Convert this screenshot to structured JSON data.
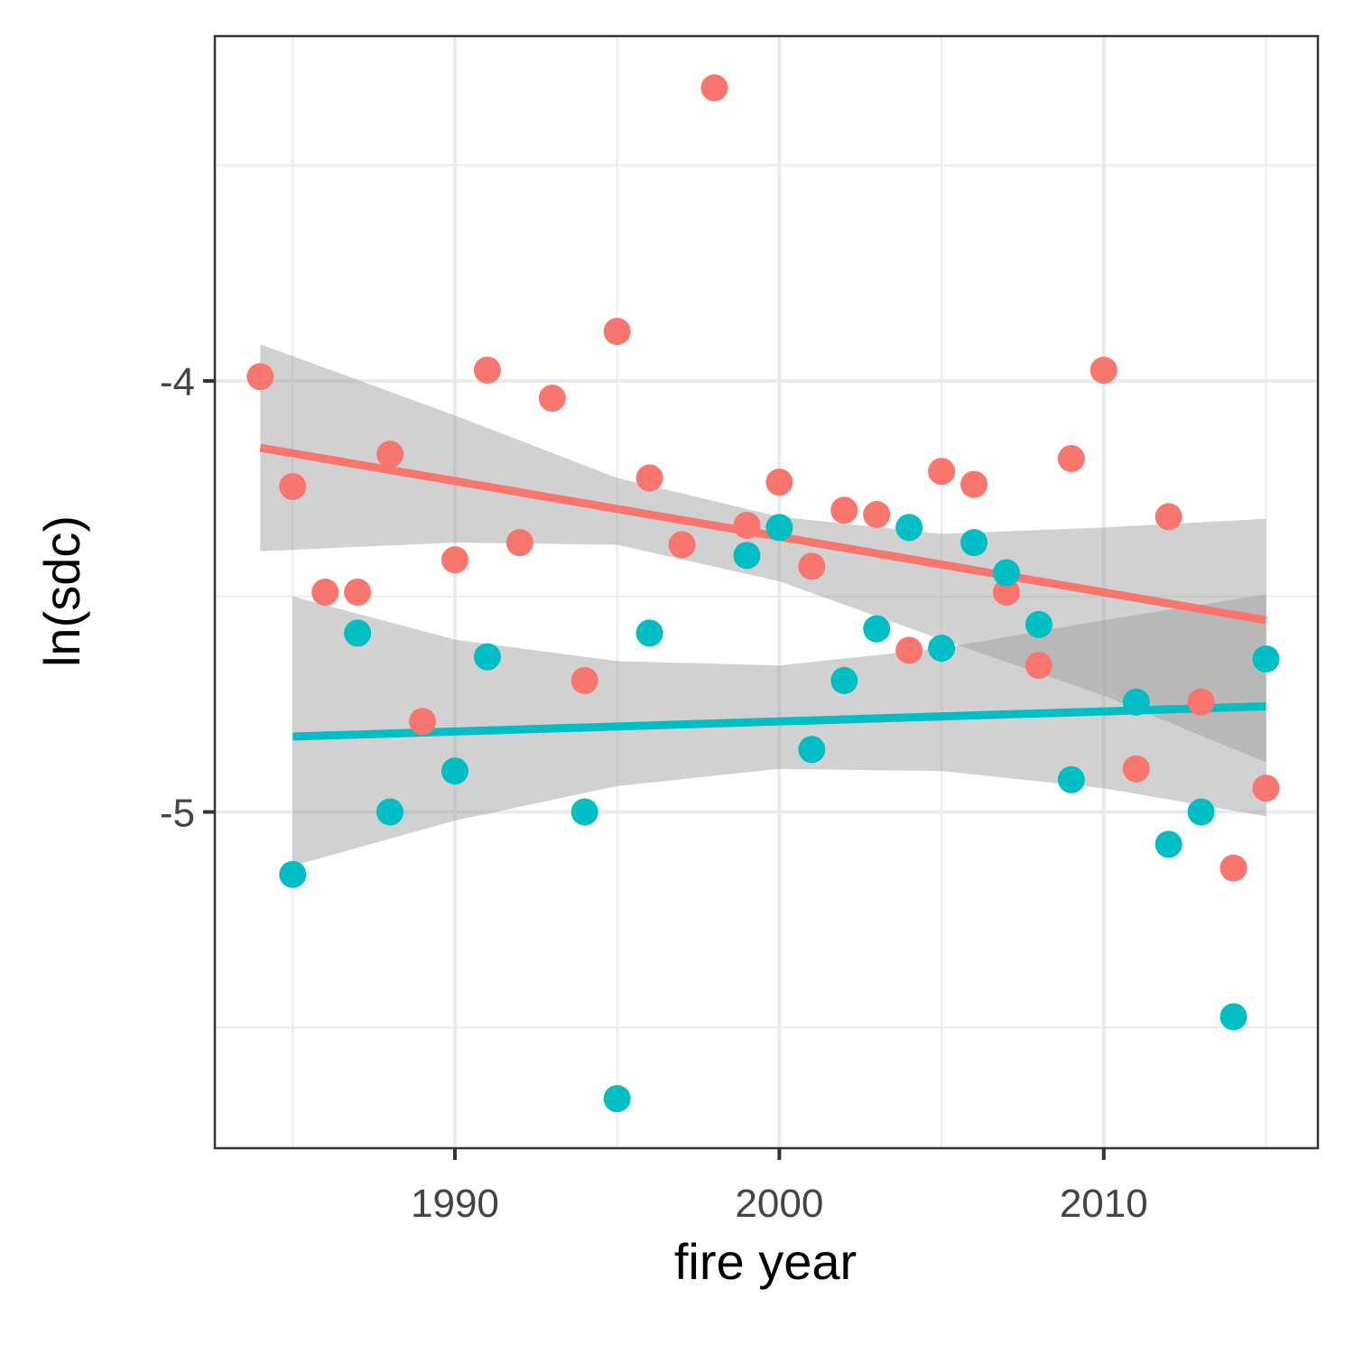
{
  "chart_data": {
    "type": "scatter",
    "xlabel": "fire year",
    "ylabel": "ln(sdc)",
    "xlim": [
      1982.6,
      2016.6
    ],
    "ylim": [
      -5.78,
      -3.2
    ],
    "x_ticks": [
      1990,
      2000,
      2010
    ],
    "x_tick_labels": [
      "1990",
      "2000",
      "2010"
    ],
    "x_minor_ticks": [
      1985,
      1995,
      2005,
      2015
    ],
    "y_ticks": [
      -4,
      -5
    ],
    "y_tick_labels": [
      "-4",
      "-5"
    ],
    "y_minor_ticks": [
      -3.5,
      -4.5,
      -5.5
    ],
    "grid": true,
    "legend": "none",
    "series": [
      {
        "color": "#F8766D",
        "points": [
          [
            1984,
            -3.99
          ],
          [
            1985,
            -4.245
          ],
          [
            1986,
            -4.49
          ],
          [
            1987,
            -4.49
          ],
          [
            1988,
            -4.17
          ],
          [
            1989,
            -4.79
          ],
          [
            1990,
            -4.415
          ],
          [
            1991,
            -3.975
          ],
          [
            1992,
            -4.375
          ],
          [
            1993,
            -4.04
          ],
          [
            1994,
            -4.695
          ],
          [
            1995,
            -3.885
          ],
          [
            1996,
            -4.225
          ],
          [
            1997,
            -4.38
          ],
          [
            1998,
            -3.32
          ],
          [
            1999,
            -4.335
          ],
          [
            2000,
            -4.235
          ],
          [
            2001,
            -4.43
          ],
          [
            2002,
            -4.3
          ],
          [
            2003,
            -4.31
          ],
          [
            2004,
            -4.625
          ],
          [
            2005,
            -4.21
          ],
          [
            2006,
            -4.24
          ],
          [
            2007,
            -4.49
          ],
          [
            2008,
            -4.66
          ],
          [
            2009,
            -4.18
          ],
          [
            2010,
            -3.975
          ],
          [
            2011,
            -4.9
          ],
          [
            2012,
            -4.315
          ],
          [
            2013,
            -4.745
          ],
          [
            2014,
            -5.13
          ],
          [
            2015,
            -4.945
          ]
        ],
        "trend": {
          "x": [
            1984,
            2015
          ],
          "y": [
            -4.155,
            -4.555
          ]
        },
        "ci_band": {
          "x": [
            1984,
            1990,
            1995,
            2000,
            2005,
            2010,
            2015
          ],
          "lower": [
            -4.395,
            -4.375,
            -4.38,
            -4.465,
            -4.6,
            -4.73,
            -4.885
          ],
          "upper": [
            -3.915,
            -4.08,
            -4.225,
            -4.315,
            -4.355,
            -4.34,
            -4.32
          ]
        }
      },
      {
        "color": "#00BFC4",
        "points": [
          [
            1985,
            -5.145
          ],
          [
            1987,
            -4.585
          ],
          [
            1988,
            -5.0
          ],
          [
            1990,
            -4.905
          ],
          [
            1991,
            -4.64
          ],
          [
            1994,
            -5.0
          ],
          [
            1995,
            -5.665
          ],
          [
            1996,
            -4.585
          ],
          [
            1999,
            -4.405
          ],
          [
            2000,
            -4.34
          ],
          [
            2001,
            -4.855
          ],
          [
            2002,
            -4.695
          ],
          [
            2003,
            -4.575
          ],
          [
            2004,
            -4.34
          ],
          [
            2005,
            -4.62
          ],
          [
            2006,
            -4.375
          ],
          [
            2007,
            -4.445
          ],
          [
            2008,
            -4.565
          ],
          [
            2009,
            -4.925
          ],
          [
            2011,
            -4.745
          ],
          [
            2012,
            -5.075
          ],
          [
            2013,
            -5.0
          ],
          [
            2014,
            -5.475
          ],
          [
            2015,
            -4.645
          ]
        ],
        "trend": {
          "x": [
            1985,
            2015
          ],
          "y": [
            -4.825,
            -4.755
          ]
        },
        "ci_band": {
          "x": [
            1985,
            1990,
            1995,
            2000,
            2005,
            2010,
            2015
          ],
          "lower": [
            -5.125,
            -5.02,
            -4.94,
            -4.9,
            -4.905,
            -4.945,
            -5.01
          ],
          "upper": [
            -4.5,
            -4.6,
            -4.65,
            -4.66,
            -4.62,
            -4.555,
            -4.495
          ]
        }
      }
    ]
  }
}
